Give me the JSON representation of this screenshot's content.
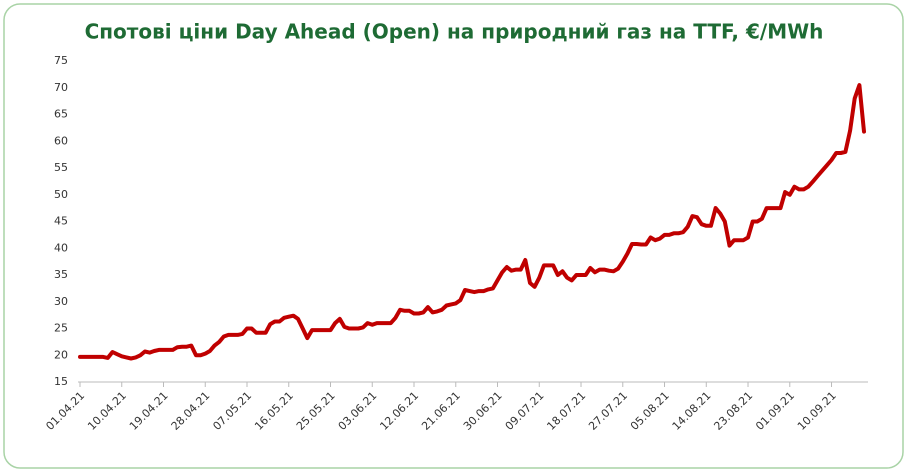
{
  "chart_data": {
    "type": "line",
    "title": "Спотові ціни Day Ahead (Open) на природний газ на TTF, €/MWh",
    "categories": [
      "01.04.21",
      null,
      null,
      null,
      null,
      null,
      null,
      null,
      null,
      "10.04.21",
      null,
      null,
      null,
      null,
      null,
      null,
      null,
      null,
      "19.04.21",
      null,
      null,
      null,
      null,
      null,
      null,
      null,
      null,
      "28.04.21",
      null,
      null,
      null,
      null,
      null,
      null,
      null,
      null,
      "07.05.21",
      null,
      null,
      null,
      null,
      null,
      null,
      null,
      null,
      "16.05.21",
      null,
      null,
      null,
      null,
      null,
      null,
      null,
      null,
      "25.05.21",
      null,
      null,
      null,
      null,
      null,
      null,
      null,
      null,
      "03.06.21",
      null,
      null,
      null,
      null,
      null,
      null,
      null,
      null,
      "12.06.21",
      null,
      null,
      null,
      null,
      null,
      null,
      null,
      null,
      "21.06.21",
      null,
      null,
      null,
      null,
      null,
      null,
      null,
      null,
      "30.06.21",
      null,
      null,
      null,
      null,
      null,
      null,
      null,
      null,
      "09.07.21",
      null,
      null,
      null,
      null,
      null,
      null,
      null,
      null,
      "18.07.21",
      null,
      null,
      null,
      null,
      null,
      null,
      null,
      null,
      "27.07.21",
      null,
      null,
      null,
      null,
      null,
      null,
      null,
      null,
      "05.08.21",
      null,
      null,
      null,
      null,
      null,
      null,
      null,
      null,
      "14.08.21",
      null,
      null,
      null,
      null,
      null,
      null,
      null,
      null,
      "23.08.21",
      null,
      null,
      null,
      null,
      null,
      null,
      null,
      null,
      "01.09.21",
      null,
      null,
      null,
      null,
      null,
      null,
      null,
      null,
      "10.09.21",
      null,
      null,
      null,
      null,
      null,
      null,
      null
    ],
    "values": [
      19.7,
      19.7,
      19.7,
      19.7,
      19.7,
      19.7,
      19.5,
      20.6,
      20.2,
      19.8,
      19.6,
      19.4,
      19.6,
      20.0,
      20.7,
      20.5,
      20.8,
      21.0,
      21.0,
      21.0,
      21.0,
      21.5,
      21.6,
      21.6,
      21.8,
      20.0,
      20.0,
      20.3,
      20.8,
      21.8,
      22.5,
      23.5,
      23.8,
      23.8,
      23.8,
      24.0,
      25.0,
      25.0,
      24.2,
      24.2,
      24.2,
      25.8,
      26.3,
      26.3,
      27.0,
      27.2,
      27.4,
      26.8,
      25.0,
      23.2,
      24.7,
      24.7,
      24.7,
      24.7,
      24.7,
      26.0,
      26.8,
      25.3,
      25.0,
      25.0,
      25.0,
      25.2,
      26.0,
      25.7,
      26.0,
      26.0,
      26.0,
      26.0,
      27.0,
      28.5,
      28.3,
      28.3,
      27.8,
      27.8,
      28.0,
      29.0,
      28.0,
      28.2,
      28.5,
      29.3,
      29.5,
      29.7,
      30.3,
      32.2,
      32.0,
      31.8,
      32.0,
      32.0,
      32.3,
      32.5,
      34.0,
      35.5,
      36.5,
      35.8,
      36.0,
      36.0,
      37.8,
      33.5,
      32.8,
      34.5,
      36.8,
      36.8,
      36.8,
      35.0,
      35.7,
      34.5,
      34.0,
      35.0,
      35.0,
      35.0,
      36.3,
      35.5,
      36.0,
      36.0,
      35.8,
      35.7,
      36.2,
      37.5,
      39.0,
      40.8,
      40.8,
      40.7,
      40.7,
      42.0,
      41.5,
      41.8,
      42.5,
      42.5,
      42.8,
      42.8,
      43.0,
      44.0,
      46.0,
      45.8,
      44.5,
      44.2,
      44.2,
      47.5,
      46.5,
      45.0,
      40.5,
      41.5,
      41.5,
      41.5,
      42.0,
      45.0,
      45.0,
      45.5,
      47.5,
      47.5,
      47.5,
      47.5,
      50.5,
      50.0,
      51.5,
      51.0,
      51.0,
      51.5,
      52.5,
      53.5,
      54.5,
      55.5,
      56.5,
      57.8,
      57.8,
      58.0,
      62.0,
      68.0,
      70.5,
      61.8
    ],
    "color": "#c00000",
    "title_color": "#1e6b34",
    "ylim": [
      15,
      75
    ],
    "yticks": [
      15,
      20,
      25,
      30,
      35,
      40,
      45,
      50,
      55,
      60,
      65,
      70,
      75
    ],
    "grid": false
  }
}
